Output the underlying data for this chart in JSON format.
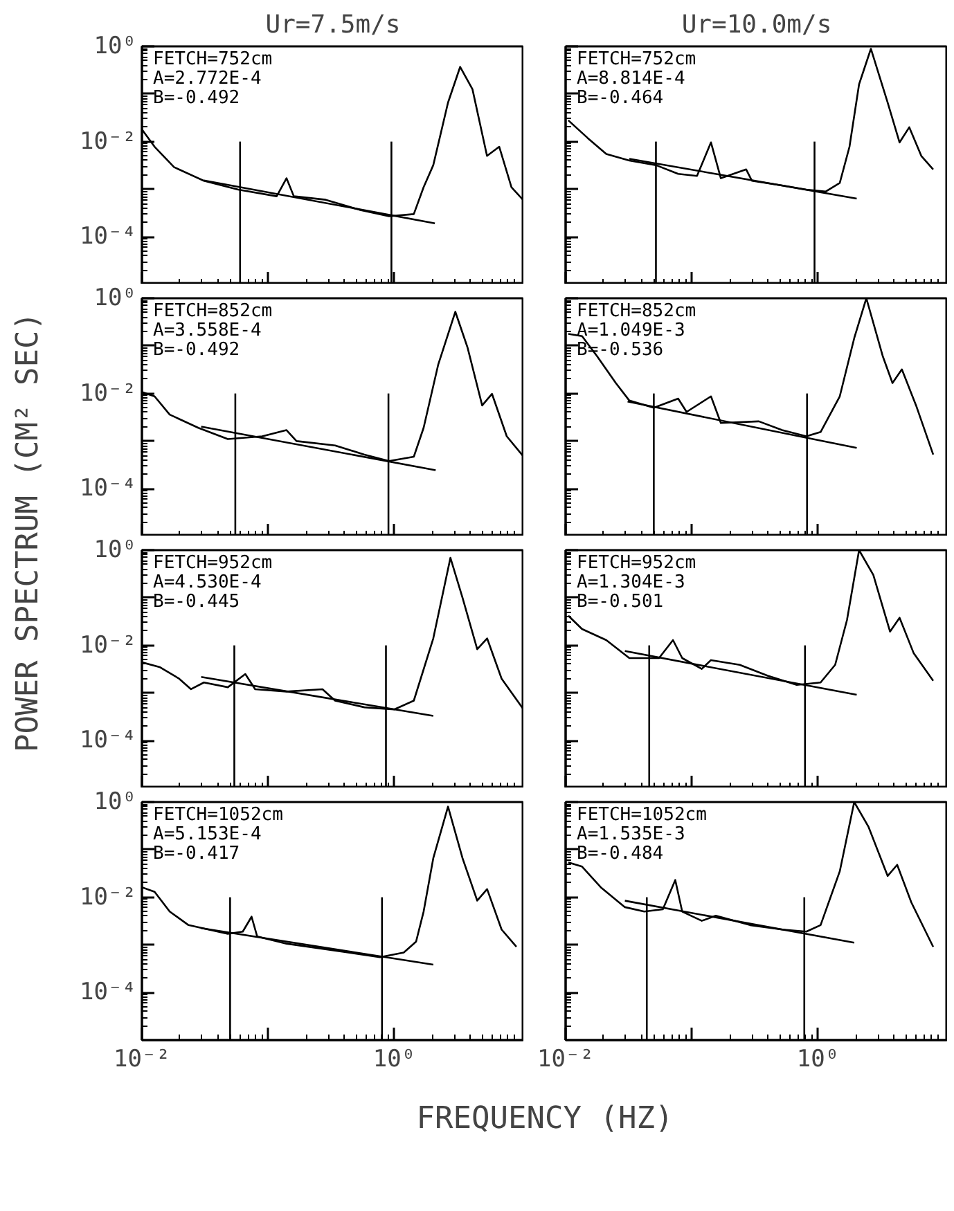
{
  "chart_data": [
    {
      "type": "line",
      "title": "Ur=7.5m/s",
      "ylabel": "POWER SPECTRUM (CM² SEC)",
      "log": "xy",
      "xlim": [
        0.01,
        10.7
      ],
      "ylim": [
        1e-05,
        1
      ],
      "xticks": [
        {
          "value": 0.01,
          "label": null
        },
        {
          "value": 0.1,
          "label": null
        },
        {
          "value": 1,
          "label": null
        }
      ],
      "yticks": [
        {
          "value": 1,
          "label": "10⁰"
        },
        {
          "value": 0.1,
          "label": null
        },
        {
          "value": 0.01,
          "label": "10⁻²"
        },
        {
          "value": 0.001,
          "label": null
        },
        {
          "value": 0.0001,
          "label": "10⁻⁴"
        }
      ],
      "tick_labels": "y",
      "annotations": [
        "FETCH=752cm",
        "A=2.772E-4",
        "B=-0.492"
      ],
      "series": [
        {
          "type": "line",
          "color": "#000000",
          "x": [
            0.01,
            0.0126,
            0.018,
            0.031,
            0.058,
            0.117,
            0.14,
            0.16,
            0.286,
            0.53,
            0.91,
            1.43,
            1.71,
            2.04,
            2.67,
            3.33,
            4.17,
            5.44,
            6.8,
            8.5,
            10.6
          ],
          "values": [
            0.018,
            0.0078,
            0.0029,
            0.0015,
            0.00098,
            0.00071,
            0.0017,
            0.00071,
            0.0006,
            0.00037,
            0.00027,
            0.0003,
            0.0011,
            0.0032,
            0.066,
            0.37,
            0.126,
            0.005,
            0.0078,
            0.0011,
            0.00058
          ]
        },
        {
          "type": "line",
          "color": "#000000",
          "x": [
            0.031,
            2.1
          ],
          "values": [
            0.00153,
            0.000192
          ]
        },
        {
          "type": "line",
          "color": "#000000",
          "x": [
            0.06,
            0.06
          ],
          "values": [
            0.01,
            1e-05
          ]
        },
        {
          "type": "line",
          "color": "#000000",
          "x": [
            0.95,
            0.95
          ],
          "values": [
            0.01,
            1e-05
          ]
        }
      ]
    },
    {
      "type": "line",
      "title": "Ur=10.0m/s",
      "log": "xy",
      "xlim": [
        0.01,
        10.7
      ],
      "ylim": [
        1e-05,
        1
      ],
      "xticks": [
        {
          "value": 0.01,
          "label": null
        },
        {
          "value": 0.1,
          "label": null
        },
        {
          "value": 1,
          "label": null
        }
      ],
      "yticks": [
        {
          "value": 1,
          "label": null
        },
        {
          "value": 0.1,
          "label": null
        },
        {
          "value": 0.01,
          "label": null
        },
        {
          "value": 0.001,
          "label": null
        },
        {
          "value": 0.0001,
          "label": null
        }
      ],
      "tick_labels": false,
      "annotations": [
        "FETCH=752cm",
        "A=8.814E-4",
        "B=-0.464"
      ],
      "series": [
        {
          "type": "line",
          "color": "#000000",
          "x": [
            0.0105,
            0.015,
            0.021,
            0.032,
            0.052,
            0.078,
            0.11,
            0.142,
            0.17,
            0.27,
            0.3,
            0.52,
            0.81,
            1.15,
            1.49,
            1.78,
            2.12,
            2.63,
            3.57,
            4.44,
            5.3,
            6.6,
            8.2
          ],
          "values": [
            0.028,
            0.0118,
            0.0055,
            0.004,
            0.0032,
            0.0021,
            0.0019,
            0.0096,
            0.0017,
            0.0026,
            0.0015,
            0.0012,
            0.00098,
            0.00089,
            0.00135,
            0.0078,
            0.16,
            0.89,
            0.066,
            0.0096,
            0.02,
            0.005,
            0.0026
          ]
        },
        {
          "type": "line",
          "color": "#000000",
          "x": [
            0.032,
            2.03
          ],
          "values": [
            0.00435,
            0.000635
          ]
        },
        {
          "type": "line",
          "color": "#000000",
          "x": [
            0.052,
            0.052
          ],
          "values": [
            0.01,
            1e-05
          ]
        },
        {
          "type": "line",
          "color": "#000000",
          "x": [
            0.94,
            0.94
          ],
          "values": [
            0.01,
            1e-05
          ]
        }
      ]
    },
    {
      "type": "line",
      "log": "xy",
      "xlim": [
        0.01,
        10.7
      ],
      "ylim": [
        1e-05,
        1
      ],
      "xticks": [
        {
          "value": 0.01,
          "label": null
        },
        {
          "value": 0.1,
          "label": null
        },
        {
          "value": 1,
          "label": null
        }
      ],
      "yticks": [
        {
          "value": 1,
          "label": "10⁰"
        },
        {
          "value": 0.1,
          "label": null
        },
        {
          "value": 0.01,
          "label": "10⁻²"
        },
        {
          "value": 0.001,
          "label": null
        },
        {
          "value": 0.0001,
          "label": "10⁻⁴"
        }
      ],
      "tick_labels": "y",
      "annotations": [
        "FETCH=852cm",
        "A=3.558E-4",
        "B=-0.492"
      ],
      "series": [
        {
          "type": "line",
          "color": "#000000",
          "x": [
            0.01,
            0.0126,
            0.0166,
            0.028,
            0.048,
            0.09,
            0.14,
            0.168,
            0.34,
            0.58,
            0.91,
            1.43,
            1.71,
            2.23,
            3.05,
            3.81,
            4.98,
            5.96,
            7.8,
            10.6
          ],
          "values": [
            0.0107,
            0.0087,
            0.0036,
            0.0019,
            0.0011,
            0.00126,
            0.0017,
            0.001,
            0.00081,
            0.00052,
            0.00038,
            0.00047,
            0.0019,
            0.04,
            0.52,
            0.093,
            0.0056,
            0.0098,
            0.00126,
            0.00047
          ]
        },
        {
          "type": "line",
          "color": "#000000",
          "x": [
            0.0295,
            2.13
          ],
          "values": [
            0.00201,
            0.000245
          ]
        },
        {
          "type": "line",
          "color": "#000000",
          "x": [
            0.055,
            0.055
          ],
          "values": [
            0.01,
            1e-05
          ]
        },
        {
          "type": "line",
          "color": "#000000",
          "x": [
            0.9,
            0.9
          ],
          "values": [
            0.01,
            1e-05
          ]
        }
      ]
    },
    {
      "type": "line",
      "log": "xy",
      "xlim": [
        0.01,
        10.7
      ],
      "ylim": [
        1e-05,
        1
      ],
      "xticks": [
        {
          "value": 0.01,
          "label": null
        },
        {
          "value": 0.1,
          "label": null
        },
        {
          "value": 1,
          "label": null
        }
      ],
      "yticks": [
        {
          "value": 1,
          "label": null
        },
        {
          "value": 0.1,
          "label": null
        },
        {
          "value": 0.01,
          "label": null
        },
        {
          "value": 0.001,
          "label": null
        },
        {
          "value": 0.0001,
          "label": null
        }
      ],
      "tick_labels": false,
      "annotations": [
        "FETCH=852cm",
        "A=1.049E-3",
        "B=-0.536"
      ],
      "series": [
        {
          "type": "line",
          "color": "#000000",
          "x": [
            0.0105,
            0.0135,
            0.0178,
            0.025,
            0.032,
            0.05,
            0.078,
            0.091,
            0.142,
            0.17,
            0.34,
            0.52,
            0.81,
            1.05,
            1.49,
            1.94,
            2.42,
            3.27,
            3.9,
            4.63,
            6.0,
            8.2
          ],
          "values": [
            0.178,
            0.16,
            0.06,
            0.0166,
            0.0071,
            0.005,
            0.0078,
            0.0041,
            0.0087,
            0.0024,
            0.0026,
            0.0017,
            0.00126,
            0.00155,
            0.0087,
            0.145,
            1.0,
            0.06,
            0.0166,
            0.032,
            0.0056,
            0.00052
          ]
        },
        {
          "type": "line",
          "color": "#000000",
          "x": [
            0.031,
            2.03
          ],
          "values": [
            0.00675,
            0.000718
          ]
        },
        {
          "type": "line",
          "color": "#000000",
          "x": [
            0.05,
            0.05
          ],
          "values": [
            0.01,
            1e-05
          ]
        },
        {
          "type": "line",
          "color": "#000000",
          "x": [
            0.82,
            0.82
          ],
          "values": [
            0.01,
            1e-05
          ]
        }
      ]
    },
    {
      "type": "line",
      "log": "xy",
      "xlim": [
        0.01,
        10.7
      ],
      "ylim": [
        1e-05,
        1
      ],
      "xticks": [
        {
          "value": 0.01,
          "label": null
        },
        {
          "value": 0.1,
          "label": null
        },
        {
          "value": 1,
          "label": null
        }
      ],
      "yticks": [
        {
          "value": 1,
          "label": "10⁰"
        },
        {
          "value": 0.1,
          "label": null
        },
        {
          "value": 0.01,
          "label": "10⁻²"
        },
        {
          "value": 0.001,
          "label": null
        },
        {
          "value": 0.0001,
          "label": "10⁻⁴"
        }
      ],
      "tick_labels": "y",
      "annotations": [
        "FETCH=952cm",
        "A=4.530E-4",
        "B=-0.445"
      ],
      "series": [
        {
          "type": "line",
          "color": "#000000",
          "x": [
            0.01,
            0.0138,
            0.0197,
            0.0245,
            0.031,
            0.048,
            0.066,
            0.079,
            0.14,
            0.27,
            0.34,
            0.58,
            1.0,
            1.43,
            2.04,
            2.79,
            3.48,
            4.55,
            5.45,
            7.1,
            10.6
          ],
          "values": [
            0.0044,
            0.0035,
            0.002,
            0.0012,
            0.00166,
            0.00132,
            0.0025,
            0.0012,
            0.00107,
            0.0012,
            0.00069,
            0.0005,
            0.00045,
            0.00069,
            0.014,
            0.69,
            0.1,
            0.0083,
            0.014,
            0.002,
            0.00045
          ]
        },
        {
          "type": "line",
          "color": "#000000",
          "x": [
            0.0295,
            2.04
          ],
          "values": [
            0.00217,
            0.00033
          ]
        },
        {
          "type": "line",
          "color": "#000000",
          "x": [
            0.054,
            0.054
          ],
          "values": [
            0.01,
            1e-05
          ]
        },
        {
          "type": "line",
          "color": "#000000",
          "x": [
            0.86,
            0.86
          ],
          "values": [
            0.01,
            1e-05
          ]
        }
      ]
    },
    {
      "type": "line",
      "log": "xy",
      "xlim": [
        0.01,
        10.7
      ],
      "ylim": [
        1e-05,
        1
      ],
      "xticks": [
        {
          "value": 0.01,
          "label": null
        },
        {
          "value": 0.1,
          "label": null
        },
        {
          "value": 1,
          "label": null
        }
      ],
      "yticks": [
        {
          "value": 1,
          "label": null
        },
        {
          "value": 0.1,
          "label": null
        },
        {
          "value": 0.01,
          "label": null
        },
        {
          "value": 0.001,
          "label": null
        },
        {
          "value": 0.0001,
          "label": null
        }
      ],
      "tick_labels": false,
      "annotations": [
        "FETCH=952cm",
        "A=1.304E-3",
        "B=-0.501"
      ],
      "series": [
        {
          "type": "line",
          "color": "#000000",
          "x": [
            0.0105,
            0.0135,
            0.021,
            0.032,
            0.055,
            0.071,
            0.084,
            0.12,
            0.142,
            0.24,
            0.4,
            0.68,
            1.05,
            1.37,
            1.7,
            2.12,
            2.75,
            3.73,
            4.44,
            5.75,
            8.2
          ],
          "values": [
            0.042,
            0.022,
            0.0129,
            0.0054,
            0.0054,
            0.0129,
            0.0054,
            0.0032,
            0.0049,
            0.0039,
            0.0023,
            0.00148,
            0.00166,
            0.0039,
            0.034,
            1.0,
            0.3,
            0.0195,
            0.038,
            0.0068,
            0.0018
          ]
        },
        {
          "type": "line",
          "color": "#000000",
          "x": [
            0.0295,
            2.03
          ],
          "values": [
            0.0076,
            0.000914
          ]
        },
        {
          "type": "line",
          "color": "#000000",
          "x": [
            0.046,
            0.046
          ],
          "values": [
            0.01,
            1e-05
          ]
        },
        {
          "type": "line",
          "color": "#000000",
          "x": [
            0.79,
            0.79
          ],
          "values": [
            0.01,
            1e-05
          ]
        }
      ]
    },
    {
      "type": "line",
      "xlabel": "FREQUENCY (HZ)",
      "log": "xy",
      "xlim": [
        0.01,
        10.7
      ],
      "ylim": [
        1e-05,
        1
      ],
      "xticks": [
        {
          "value": 0.01,
          "label": "10⁻²"
        },
        {
          "value": 0.1,
          "label": null
        },
        {
          "value": 1,
          "label": "10⁰"
        }
      ],
      "yticks": [
        {
          "value": 1,
          "label": "10⁰"
        },
        {
          "value": 0.1,
          "label": null
        },
        {
          "value": 0.01,
          "label": "10⁻²"
        },
        {
          "value": 0.001,
          "label": null
        },
        {
          "value": 0.0001,
          "label": "10⁻⁴"
        }
      ],
      "annotations": [
        "FETCH=1052cm",
        "A=5.153E-4",
        "B=-0.417"
      ],
      "series": [
        {
          "type": "line",
          "color": "#000000",
          "x": [
            0.01,
            0.0126,
            0.0166,
            0.0234,
            0.048,
            0.063,
            0.074,
            0.082,
            0.14,
            0.34,
            0.77,
            1.19,
            1.49,
            1.71,
            2.04,
            2.67,
            3.48,
            4.55,
            5.45,
            7.1,
            9.3
          ],
          "values": [
            0.0162,
            0.013,
            0.005,
            0.0026,
            0.0017,
            0.0019,
            0.0039,
            0.0015,
            0.00106,
            0.00076,
            0.00055,
            0.00069,
            0.00117,
            0.005,
            0.066,
            0.8,
            0.066,
            0.0085,
            0.0148,
            0.0021,
            0.00091
          ]
        },
        {
          "type": "line",
          "color": "#000000",
          "x": [
            0.0295,
            2.04
          ],
          "values": [
            0.00224,
            0.000383
          ]
        },
        {
          "type": "line",
          "color": "#000000",
          "x": [
            0.05,
            0.05
          ],
          "values": [
            0.01,
            1e-05
          ]
        },
        {
          "type": "line",
          "color": "#000000",
          "x": [
            0.8,
            0.8
          ],
          "values": [
            0.01,
            1e-05
          ]
        }
      ]
    },
    {
      "type": "line",
      "log": "xy",
      "xlim": [
        0.01,
        10.7
      ],
      "ylim": [
        1e-05,
        1
      ],
      "xticks": [
        {
          "value": 0.01,
          "label": "10⁻²"
        },
        {
          "value": 0.1,
          "label": null
        },
        {
          "value": 1,
          "label": "10⁰"
        }
      ],
      "yticks": [
        {
          "value": 1,
          "label": null
        },
        {
          "value": 0.1,
          "label": null
        },
        {
          "value": 0.01,
          "label": null
        },
        {
          "value": 0.001,
          "label": null
        },
        {
          "value": 0.0001,
          "label": null
        }
      ],
      "tick_labels": "x",
      "annotations": [
        "FETCH=1052cm",
        "A=1.535E-3",
        "B=-0.484"
      ],
      "series": [
        {
          "type": "line",
          "color": "#000000",
          "x": [
            0.0105,
            0.0135,
            0.019,
            0.0295,
            0.042,
            0.059,
            0.074,
            0.084,
            0.12,
            0.155,
            0.29,
            0.52,
            0.81,
            1.05,
            1.49,
            1.94,
            2.52,
            3.57,
            4.25,
            5.5,
            8.2
          ],
          "values": [
            0.054,
            0.044,
            0.0162,
            0.0062,
            0.005,
            0.0056,
            0.023,
            0.005,
            0.0032,
            0.0041,
            0.0026,
            0.0021,
            0.0019,
            0.0026,
            0.035,
            1.0,
            0.3,
            0.028,
            0.048,
            0.0078,
            0.00091
          ]
        },
        {
          "type": "line",
          "color": "#000000",
          "x": [
            0.0295,
            1.94
          ],
          "values": [
            0.00845,
            0.00111
          ]
        },
        {
          "type": "line",
          "color": "#000000",
          "x": [
            0.044,
            0.044
          ],
          "values": [
            0.01,
            1e-05
          ]
        },
        {
          "type": "line",
          "color": "#000000",
          "x": [
            0.78,
            0.78
          ],
          "values": [
            0.01,
            1e-05
          ]
        }
      ]
    }
  ]
}
